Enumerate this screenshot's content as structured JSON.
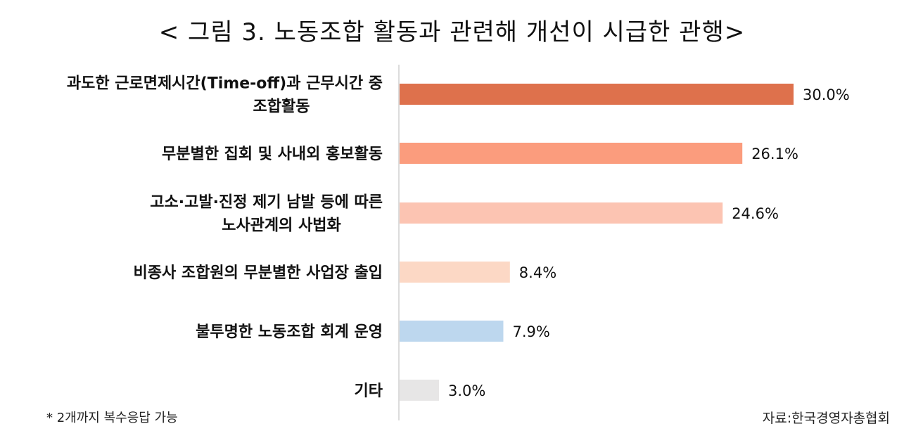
{
  "chart_data": {
    "type": "bar",
    "orientation": "horizontal",
    "title": "< 그림 3. 노동조합 활동과 관련해 개선이 시급한 관행>",
    "categories": [
      [
        "과도한 근로면제시간(Time-off)과 근무시간 중",
        "조합활동"
      ],
      [
        "무분별한 집회 및 사내외 홍보활동"
      ],
      [
        "고소·고발·진정 제기 남발 등에 따른",
        "노사관계의 사법화"
      ],
      [
        "비종사 조합원의 무분별한 사업장 출입"
      ],
      [
        "불투명한 노동조합 회계 운영"
      ],
      [
        "기타"
      ]
    ],
    "values": [
      30.0,
      26.1,
      24.6,
      8.4,
      7.9,
      3.0
    ],
    "value_labels": [
      "30.0%",
      "26.1%",
      "24.6%",
      "8.4%",
      "7.9%",
      "3.0%"
    ],
    "colors": [
      "#DE714C",
      "#FB9C7D",
      "#FCC4B2",
      "#FCD8C5",
      "#BDD7EE",
      "#E7E6E6"
    ],
    "xlim": [
      0,
      30
    ],
    "grid": false,
    "legend": "none"
  },
  "footnote": "* 2개까지 복수응답 가능",
  "source": "자료:한국경영자총협회"
}
